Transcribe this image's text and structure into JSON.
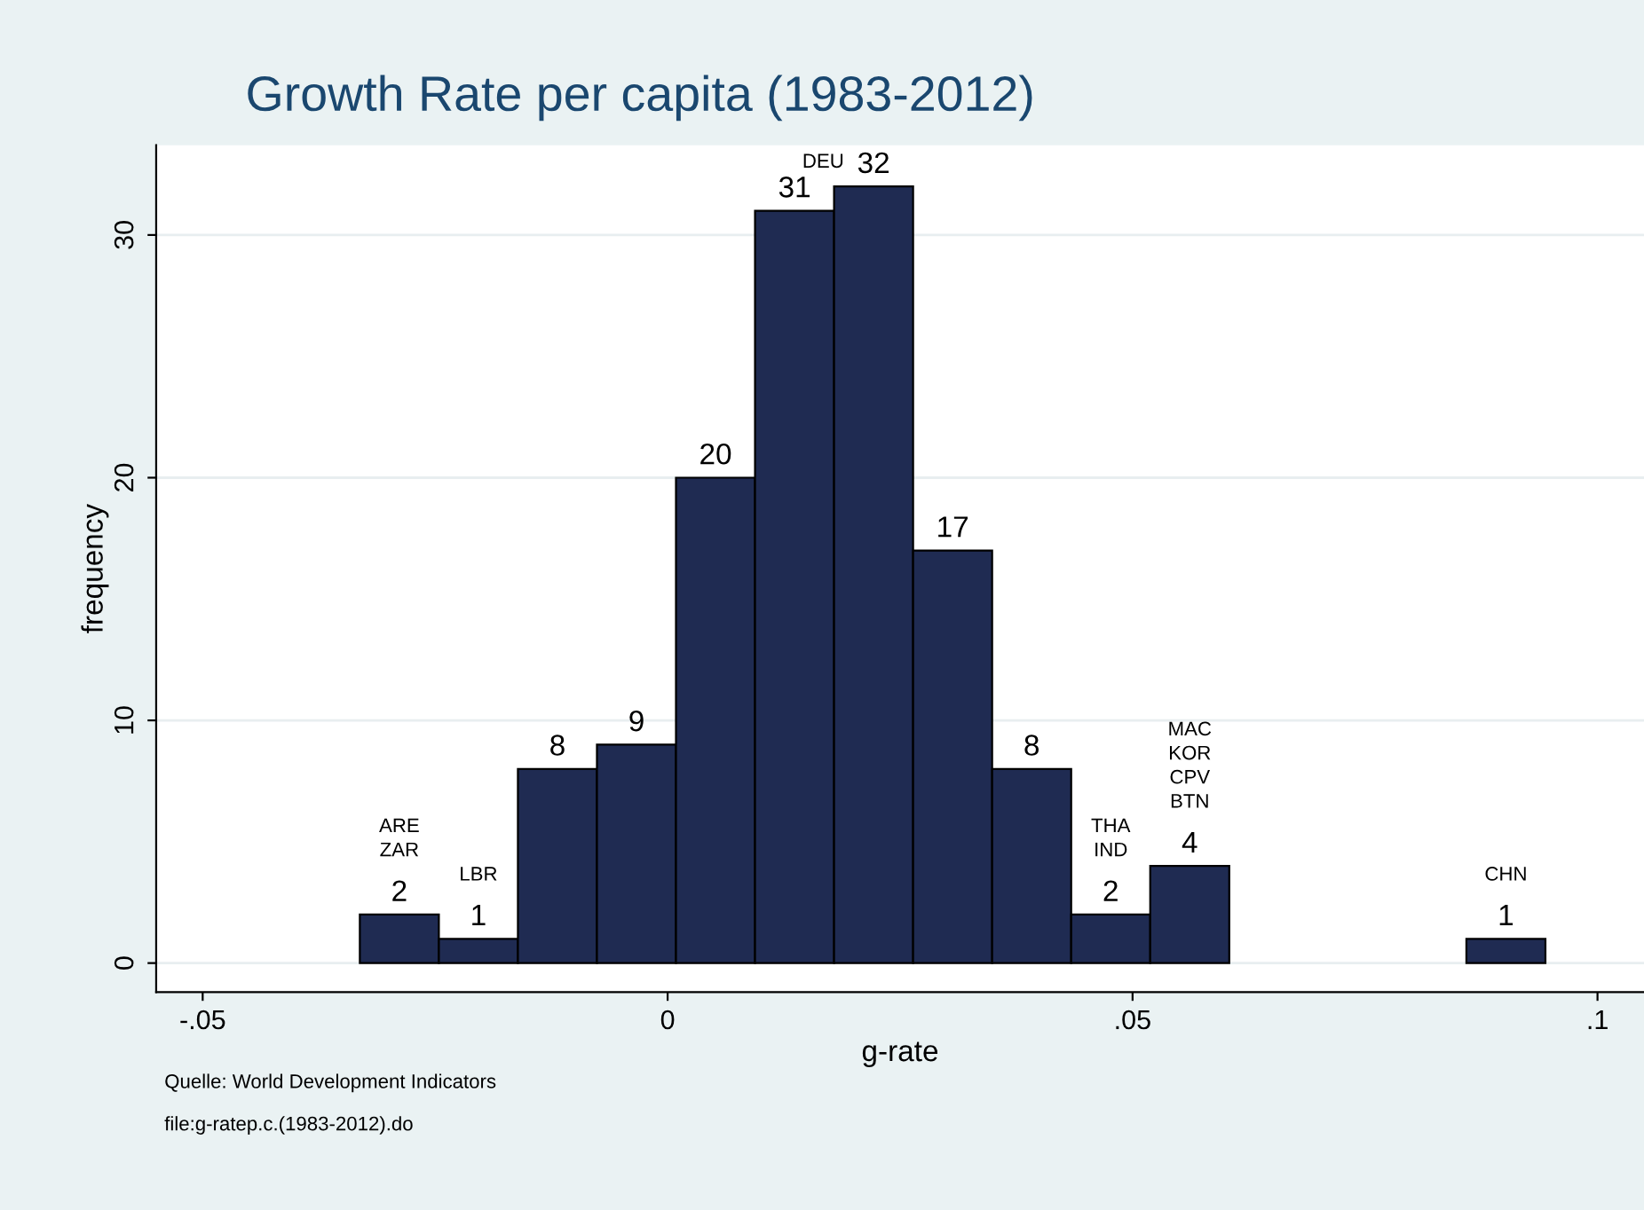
{
  "chart_data": {
    "type": "histogram",
    "title": "Growth Rate per capita (1983-2012)",
    "xlabel": "g-rate",
    "ylabel": "frequency",
    "bins": [
      -0.0331,
      -0.0246,
      -0.0161,
      -0.0076,
      0.0009,
      0.0094,
      0.0179,
      0.0264,
      0.0349,
      0.0434,
      0.0519,
      0.0604,
      0.0689,
      0.0774,
      0.0859,
      0.0944
    ],
    "values": [
      2,
      1,
      8,
      9,
      20,
      31,
      32,
      17,
      8,
      2,
      4,
      null,
      null,
      null,
      1
    ],
    "value_labels": [
      "2",
      "1",
      "8",
      "9",
      "20",
      "31",
      "32",
      "17",
      "8",
      "2",
      "4",
      null,
      null,
      null,
      "1"
    ],
    "color": "#1f2b52",
    "xlim": [
      -0.055,
      0.105
    ],
    "xticks": [
      {
        "value": -0.05,
        "label": "-.05"
      },
      0,
      {
        "value": 0.05,
        "label": ".05"
      },
      {
        "value": 0.1,
        "label": ".1"
      }
    ],
    "ylim": [
      -1.2,
      33.7
    ],
    "yticks": [
      0,
      10,
      20,
      30
    ],
    "grid": "y",
    "legend": false,
    "annotations": [
      {
        "text": "ARE\nZAR",
        "x": -0.02885,
        "y": 2
      },
      {
        "text": "LBR",
        "x": -0.02035,
        "y": 1
      },
      {
        "text": "DEU",
        "x": 0.02215,
        "y": 32
      },
      {
        "text": "THA\nIND",
        "x": 0.04765,
        "y": 2
      },
      {
        "text": "MAC\nKOR\nCPV\nBTN",
        "x": 0.05615,
        "y": 4
      },
      {
        "text": "CHN",
        "x": 0.09015,
        "y": 1
      },
      "Quelle: World Development Indicators",
      "file:g-ratep.c.(1983-2012).do"
    ]
  }
}
